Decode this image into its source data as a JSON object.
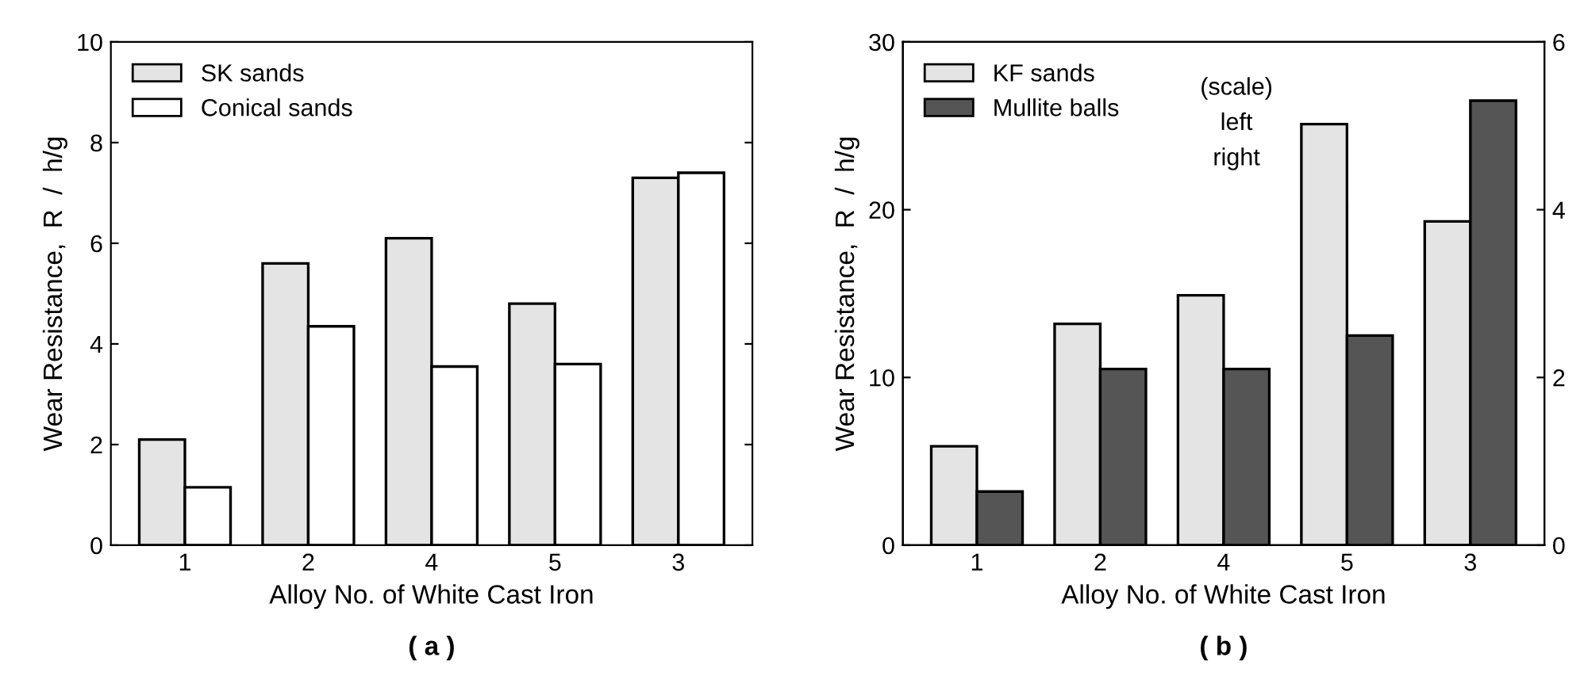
{
  "chart_data": [
    {
      "type": "bar",
      "categories": [
        "1",
        "2",
        "4",
        "5",
        "3"
      ],
      "xlabel": "Alloy No. of White Cast Iron",
      "ylabel": "Wear Resistance,  R  /  h/g",
      "series": [
        {
          "name": "SK sands",
          "color": "#e4e4e4",
          "values": [
            2.1,
            5.6,
            6.1,
            4.8,
            7.3
          ]
        },
        {
          "name": "Conical sands",
          "color": "#ffffff",
          "values": [
            1.15,
            4.35,
            3.55,
            3.6,
            7.4
          ]
        }
      ],
      "ylim": [
        0,
        10
      ],
      "yticks": [
        0,
        2,
        4,
        6,
        8,
        10
      ],
      "legend": "top left",
      "grid": false,
      "annotations": [
        "( a )"
      ]
    },
    {
      "type": "bar",
      "categories": [
        "1",
        "2",
        "4",
        "5",
        "3"
      ],
      "xlabel": "Alloy No. of White Cast Iron",
      "ylabel": "Wear Resistance,  R  /  h/g",
      "series": [
        {
          "name": "KF sands",
          "color": "#e4e4e4",
          "values": [
            5.9,
            13.2,
            14.9,
            25.1,
            19.3
          ]
        },
        {
          "name": "Mullite balls",
          "color": "#555555",
          "axis": "y2",
          "values": [
            0.64,
            2.1,
            2.1,
            2.5,
            5.3
          ]
        }
      ],
      "ylim": [
        0,
        30
      ],
      "yticks": [
        0,
        10,
        20,
        30
      ],
      "y2lim": [
        0,
        6
      ],
      "y2ticks": [
        0,
        2,
        4,
        6
      ],
      "legend": "top left",
      "grid": false,
      "annotations": [
        "(scale)",
        "left",
        "right",
        "( b )"
      ]
    }
  ]
}
